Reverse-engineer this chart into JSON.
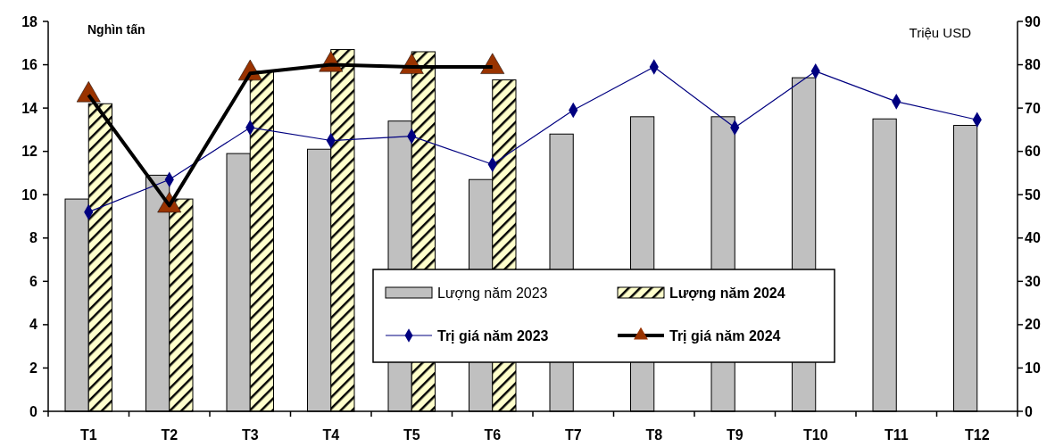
{
  "chart_data": {
    "type": "bar",
    "ylabel": "Nghìn tấn",
    "y2label": "Triệu USD",
    "categories": [
      "T1",
      "T2",
      "T3",
      "T4",
      "T5",
      "T6",
      "T7",
      "T8",
      "T9",
      "T10",
      "T11",
      "T12"
    ],
    "series": [
      {
        "name": "Lượng năm 2023",
        "color": "#c0c0c0",
        "values": [
          9.8,
          10.9,
          11.9,
          12.1,
          13.4,
          10.7,
          12.8,
          13.6,
          13.6,
          15.4,
          13.5,
          13.2
        ]
      },
      {
        "name": "Lượng năm 2024",
        "color": "#ffffcc",
        "values": [
          14.2,
          9.8,
          15.7,
          16.7,
          16.6,
          15.3,
          null,
          null,
          null,
          null,
          null,
          null
        ]
      },
      {
        "name": "Trị giá năm 2023",
        "type": "line",
        "axis": "y2",
        "color": "#000080",
        "marker": "diamond",
        "values": [
          46,
          53.5,
          65.5,
          62.5,
          63.5,
          57,
          69.5,
          79.5,
          65.5,
          78.5,
          71.5,
          67.3
        ]
      },
      {
        "name": "Trị giá năm 2024",
        "type": "line",
        "axis": "y2",
        "color": "#000000",
        "marker": "triangle",
        "values": [
          73,
          47.5,
          78,
          80,
          79.5,
          79.5,
          null,
          null,
          null,
          null,
          null,
          null
        ]
      }
    ],
    "ylim": [
      0,
      18
    ],
    "yticks": [
      0,
      2,
      4,
      6,
      8,
      10,
      12,
      14,
      16,
      18
    ],
    "y2lim": [
      0,
      90
    ],
    "y2ticks": [
      0,
      10,
      20,
      30,
      40,
      50,
      60,
      70,
      80,
      90
    ],
    "grid": false,
    "legend": "bottom"
  }
}
